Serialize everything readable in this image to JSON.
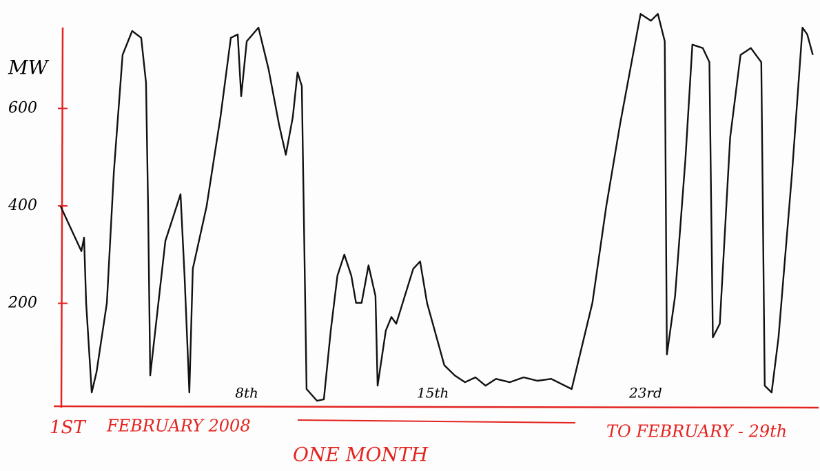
{
  "chart_data": {
    "type": "line",
    "y_label": "MW",
    "start_label": "1ST",
    "month_label": "FEBRUARY 2008",
    "end_label": "TO FEBRUARY - 29th",
    "caption": "ONE MONTH",
    "color": "#111111",
    "axis_color": "#e3231f",
    "xlim": [
      1,
      29.3
    ],
    "ylim": [
      0,
      800
    ],
    "xticks": [
      {
        "value": 8,
        "label": "8th"
      },
      {
        "value": 15,
        "label": "15th"
      },
      {
        "value": 23,
        "label": "23rd"
      }
    ],
    "yticks": [
      200,
      400,
      600
    ],
    "x": [
      1.0,
      1.78,
      1.88,
      1.96,
      2.17,
      2.35,
      2.74,
      3.0,
      3.33,
      3.69,
      4.03,
      4.21,
      4.29,
      4.37,
      4.94,
      5.51,
      5.66,
      5.84,
      5.97,
      6.49,
      7.01,
      7.4,
      7.66,
      7.79,
      8.0,
      8.44,
      8.82,
      9.21,
      9.47,
      9.73,
      9.91,
      10.07,
      10.25,
      10.64,
      10.9,
      11.16,
      11.41,
      11.67,
      11.93,
      12.11,
      12.32,
      12.58,
      12.84,
      12.92,
      13.23,
      13.44,
      13.62,
      14.26,
      14.52,
      14.78,
      15.43,
      15.82,
      16.21,
      16.6,
      16.98,
      17.37,
      17.89,
      18.41,
      18.93,
      19.45,
      20.22,
      21.0,
      21.52,
      22.04,
      22.81,
      23.2,
      23.46,
      23.72,
      23.8,
      24.11,
      24.5,
      24.76,
      25.15,
      25.4,
      25.53,
      25.79,
      26.18,
      26.57,
      26.96,
      27.35,
      27.48,
      27.74,
      28.0,
      28.51,
      28.9,
      29.08,
      29.29
    ],
    "y": [
      399,
      307,
      335,
      201,
      17,
      59,
      201,
      469,
      710,
      759,
      745,
      653,
      399,
      52,
      328,
      424,
      257,
      17,
      271,
      399,
      582,
      745,
      752,
      625,
      738,
      766,
      681,
      568,
      505,
      582,
      674,
      646,
      24,
      0,
      3,
      144,
      257,
      300,
      257,
      201,
      201,
      278,
      215,
      31,
      144,
      172,
      158,
      271,
      286,
      201,
      73,
      52,
      38,
      48,
      31,
      45,
      38,
      48,
      41,
      45,
      24,
      201,
      399,
      568,
      794,
      780,
      794,
      738,
      95,
      215,
      498,
      731,
      724,
      695,
      130,
      158,
      540,
      710,
      724,
      695,
      31,
      17,
      130,
      469,
      766,
      752,
      710
    ]
  }
}
